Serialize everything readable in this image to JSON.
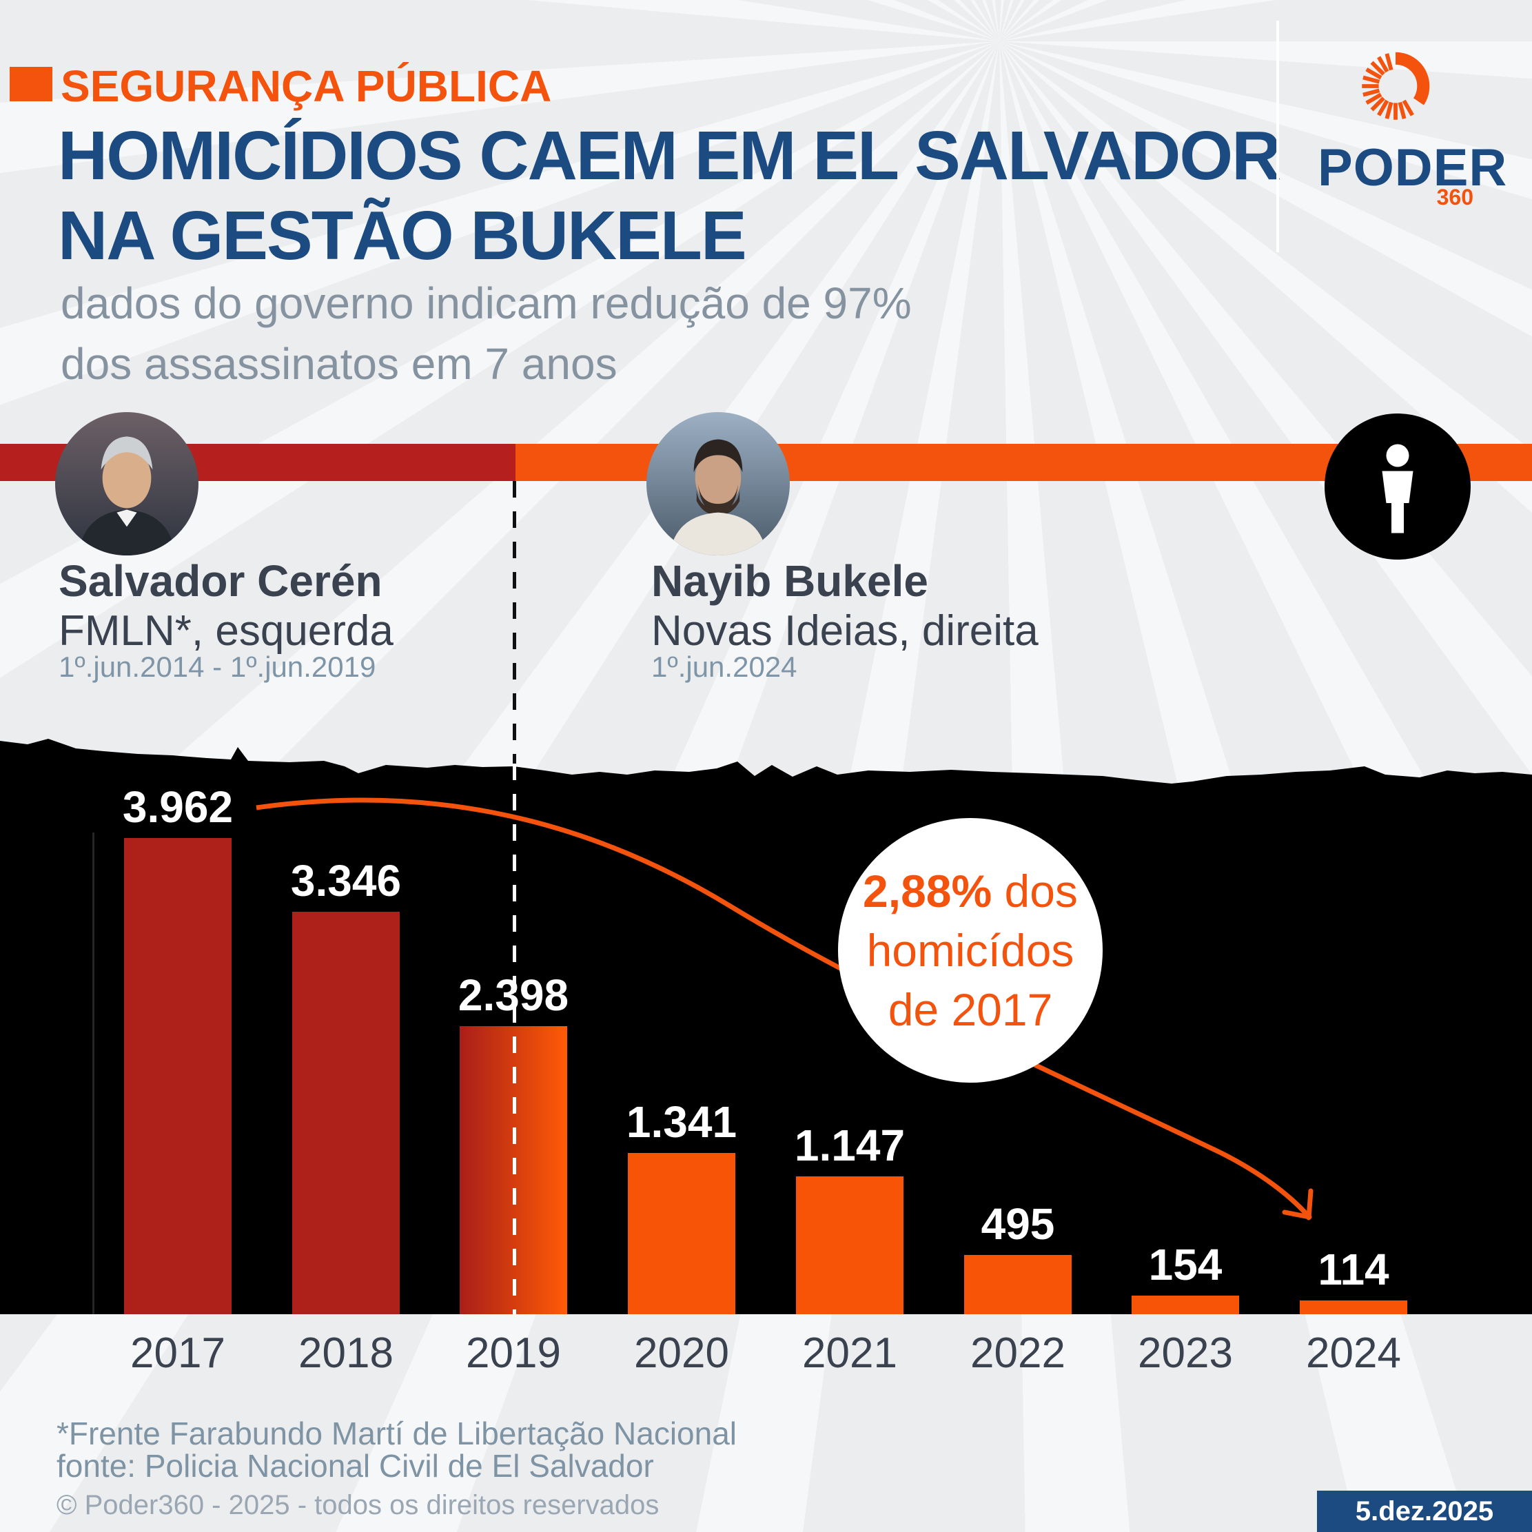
{
  "header": {
    "kicker": "SEGURANÇA PÚBLICA",
    "title_line1": "HOMICÍDIOS CAEM EM EL SALVADOR",
    "title_line2": "NA GESTÃO BUKELE",
    "subtitle_line1": "dados do governo indicam redução de 97%",
    "subtitle_line2": "dos assassinatos em 7 anos"
  },
  "logo": {
    "word": "PODER",
    "number": "360"
  },
  "presidents": [
    {
      "name": "Salvador Cerén",
      "party": "FMLN*, esquerda",
      "term": "1º.jun.2014 - 1º.jun.2019"
    },
    {
      "name": "Nayib Bukele",
      "party": "Novas Ideias, direita",
      "term": "1º.jun.2024"
    }
  ],
  "chart_data": {
    "type": "bar",
    "title": "homicídios em El Salvador por ano",
    "categories": [
      "2017",
      "2018",
      "2019",
      "2020",
      "2021",
      "2022",
      "2023",
      "2024"
    ],
    "values": [
      3962,
      3346,
      2398,
      1341,
      1147,
      495,
      154,
      114
    ],
    "value_labels": [
      "3.962",
      "3.346",
      "2.398",
      "1.341",
      "1.147",
      "495",
      "154",
      "114"
    ],
    "ylim": [
      0,
      3962
    ],
    "grid": false,
    "legend": "none",
    "bar_styles": [
      "red",
      "red",
      "split",
      "orange",
      "orange",
      "orange",
      "orange",
      "orange"
    ],
    "annotation": {
      "bold": "2,88%",
      "line1_rest": " dos",
      "line2": "homicídos",
      "line3": "de 2017"
    }
  },
  "colors": {
    "background": "#ECEDEF",
    "accent_orange": "#F4530E",
    "navy": "#1B4B80",
    "band_red": "#B51F1D",
    "bar_red": "#AE211B",
    "bar_orange": "#F85408",
    "split_from": "#A91E18",
    "split_to": "#FF5B06",
    "chart_black": "#000000",
    "text_slate": "#39424E",
    "text_bluegray": "#7E95A8"
  },
  "footer": {
    "note1": "*Frente Farabundo Martí de Libertação Nacional",
    "note2": "fonte: Policia Nacional Civil de El Salvador",
    "copyright": "© Poder360 - 2025 - todos os direitos reservados",
    "date": "5.dez.2025"
  }
}
